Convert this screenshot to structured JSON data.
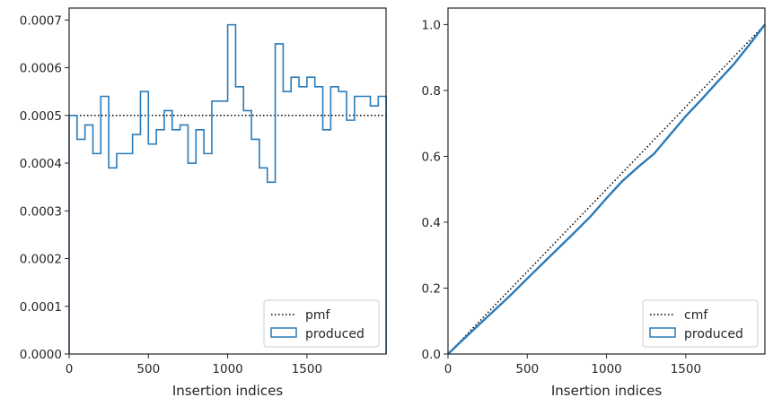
{
  "chart_data": [
    {
      "type": "step-histogram",
      "xlabel": "Insertion indices",
      "ylabel": "",
      "xlim": [
        0,
        1999
      ],
      "ylim": [
        0,
        0.000725
      ],
      "xticks": [
        0,
        500,
        1000,
        1500
      ],
      "xtick_labels": [
        "0",
        "500",
        "1000",
        "1500"
      ],
      "yticks": [
        0,
        0.0001,
        0.0002,
        0.0003,
        0.0004,
        0.0005,
        0.0006,
        0.0007
      ],
      "ytick_labels": [
        "0.0000",
        "0.0001",
        "0.0002",
        "0.0003",
        "0.0004",
        "0.0005",
        "0.0006",
        "0.0007"
      ],
      "reference_line": {
        "name": "pmf",
        "style": "dotted",
        "color": "#000000",
        "y": 0.0005
      },
      "series": [
        {
          "name": "produced",
          "color": "#2b7bb9",
          "bin_width": 50,
          "bin_start": 0,
          "values": [
            0.0005,
            0.00045,
            0.00048,
            0.00042,
            0.00054,
            0.00039,
            0.00042,
            0.00042,
            0.00046,
            0.00055,
            0.00044,
            0.00047,
            0.00051,
            0.00047,
            0.00048,
            0.0004,
            0.00047,
            0.00042,
            0.00053,
            0.00053,
            0.00069,
            0.00056,
            0.00051,
            0.00045,
            0.00039,
            0.00036,
            0.00065,
            0.00055,
            0.00058,
            0.00056,
            0.00058,
            0.00056,
            0.00047,
            0.00056,
            0.00055,
            0.00049,
            0.00054,
            0.00054,
            0.00052,
            0.00054
          ]
        }
      ],
      "legend": {
        "placement": "lower-right",
        "entries": [
          "pmf",
          "produced"
        ]
      }
    },
    {
      "type": "step-line",
      "xlabel": "Insertion indices",
      "ylabel": "",
      "xlim": [
        0,
        1999
      ],
      "ylim": [
        0,
        1.05
      ],
      "xticks": [
        0,
        500,
        1000,
        1500
      ],
      "xtick_labels": [
        "0",
        "500",
        "1000",
        "1500"
      ],
      "yticks": [
        0,
        0.2,
        0.4,
        0.6,
        0.8,
        1.0
      ],
      "ytick_labels": [
        "0.0",
        "0.2",
        "0.4",
        "0.6",
        "0.8",
        "1.0"
      ],
      "reference_line": {
        "name": "cmf",
        "style": "dotted",
        "color": "#000000",
        "points": [
          [
            0,
            0
          ],
          [
            1999,
            1.0
          ]
        ]
      },
      "series": [
        {
          "name": "produced",
          "color": "#2b7bb9",
          "x": [
            0,
            100,
            200,
            300,
            400,
            500,
            600,
            700,
            800,
            900,
            1000,
            1100,
            1200,
            1300,
            1400,
            1500,
            1600,
            1700,
            1800,
            1900,
            1999
          ],
          "y": [
            0,
            0.046,
            0.091,
            0.136,
            0.181,
            0.229,
            0.276,
            0.323,
            0.37,
            0.418,
            0.473,
            0.525,
            0.568,
            0.608,
            0.665,
            0.722,
            0.773,
            0.826,
            0.878,
            0.938,
            1.0
          ]
        }
      ],
      "legend": {
        "placement": "lower-right",
        "entries": [
          "cmf",
          "produced"
        ]
      }
    }
  ]
}
